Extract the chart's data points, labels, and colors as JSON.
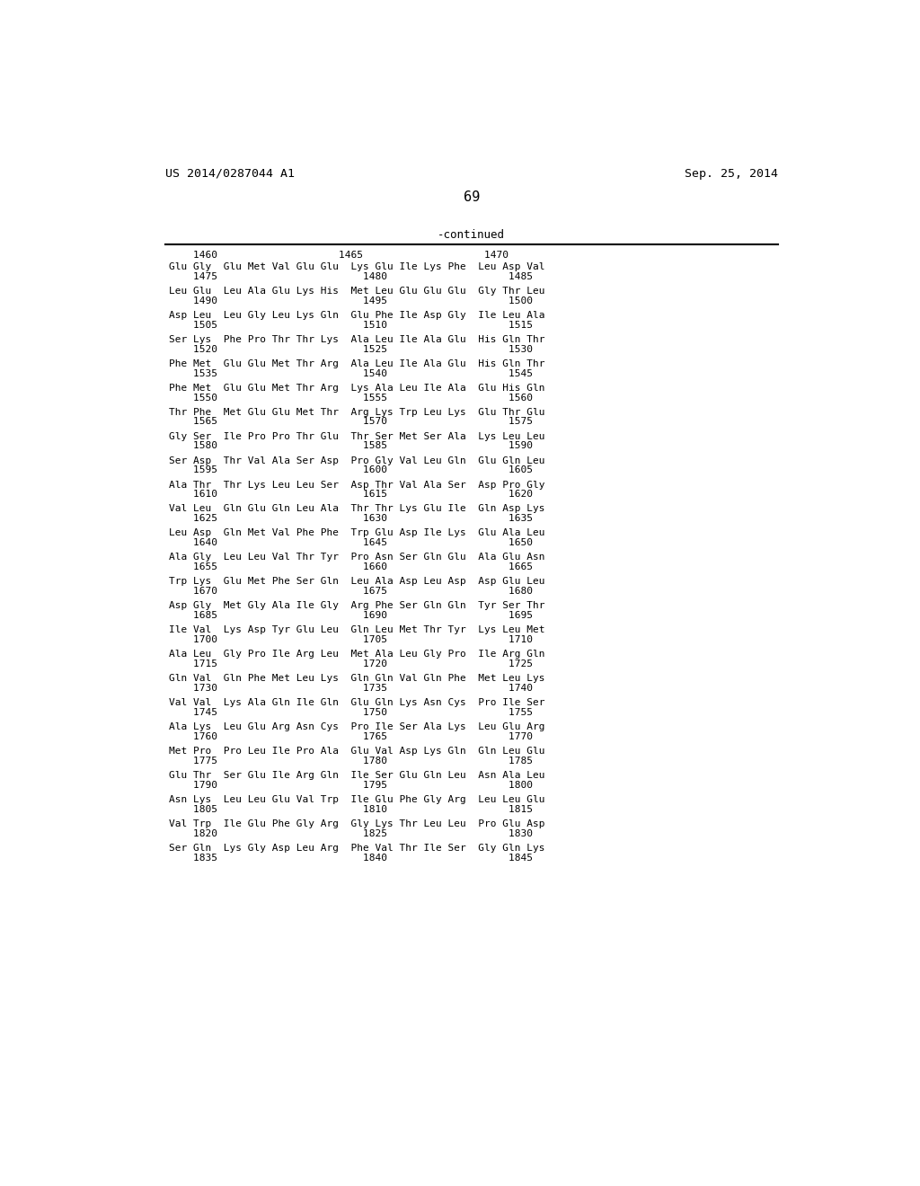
{
  "header_left": "US 2014/0287044 A1",
  "header_right": "Sep. 25, 2014",
  "page_number": "69",
  "continued_label": "-continued",
  "background_color": "#ffffff",
  "text_color": "#000000",
  "blocks": [
    {
      "res": "Glu Gly  Glu Met Val Glu Glu  Lys Glu Ile Lys Phe  Leu Asp Val",
      "num": "    1475                        1480                    1485"
    },
    {
      "res": "Leu Glu  Leu Ala Glu Lys His  Met Leu Glu Glu Glu  Gly Thr Leu",
      "num": "    1490                        1495                    1500"
    },
    {
      "res": "Asp Leu  Leu Gly Leu Lys Gln  Glu Phe Ile Asp Gly  Ile Leu Ala",
      "num": "    1505                        1510                    1515"
    },
    {
      "res": "Ser Lys  Phe Pro Thr Thr Lys  Ala Leu Ile Ala Glu  His Gln Thr",
      "num": "    1520                        1525                    1530"
    },
    {
      "res": "Phe Met  Glu Glu Met Thr Arg  Ala Leu Ile Ala Glu  His Gln Thr",
      "num": "    1535                        1540                    1545"
    },
    {
      "res": "Phe Met  Glu Glu Met Thr Arg  Lys Ala Leu Ile Ala  Glu His Gln",
      "num": "    1550                        1555                    1560"
    },
    {
      "res": "Thr Phe  Met Glu Glu Met Thr  Arg Lys Trp Leu Lys  Glu Thr Glu",
      "num": "    1565                        1570                    1575"
    },
    {
      "res": "Gly Ser  Ile Pro Pro Thr Glu  Thr Ser Met Ser Ala  Lys Leu Leu",
      "num": "    1580                        1585                    1590"
    },
    {
      "res": "Ser Asp  Thr Val Ala Ser Asp  Pro Gly Val Leu Gln  Glu Gln Leu",
      "num": "    1595                        1600                    1605"
    },
    {
      "res": "Ala Thr  Thr Lys Leu Leu Ser  Asp Thr Val Ala Ser  Asp Pro Gly",
      "num": "    1610                        1615                    1620"
    },
    {
      "res": "Val Leu  Gln Glu Gln Leu Ala  Thr Thr Lys Glu Ile  Gln Asp Lys",
      "num": "    1625                        1630                    1635"
    },
    {
      "res": "Leu Asp  Gln Met Val Phe Phe  Trp Glu Asp Ile Lys  Glu Ala Leu",
      "num": "    1640                        1645                    1650"
    },
    {
      "res": "Ala Gly  Leu Leu Val Thr Tyr  Pro Asn Ser Gln Glu  Ala Glu Asn",
      "num": "    1655                        1660                    1665"
    },
    {
      "res": "Trp Lys  Glu Met Phe Ser Gln  Leu Ala Asp Leu Asp  Asp Glu Leu",
      "num": "    1670                        1675                    1680"
    },
    {
      "res": "Asp Gly  Met Gly Ala Ile Gly  Arg Phe Ser Gln Gln  Tyr Ser Thr",
      "num": "    1685                        1690                    1695"
    },
    {
      "res": "Ile Val  Lys Asp Tyr Glu Leu  Gln Leu Met Thr Tyr  Lys Leu Met",
      "num": "    1700                        1705                    1710"
    },
    {
      "res": "Ala Leu  Gly Pro Ile Arg Leu  Met Ala Leu Gly Pro  Ile Arg Gln",
      "num": "    1715                        1720                    1725"
    },
    {
      "res": "Gln Val  Gln Phe Met Leu Lys  Gln Gln Val Gln Phe  Met Leu Lys",
      "num": "    1730                        1735                    1740"
    },
    {
      "res": "Val Val  Lys Ala Gln Ile Gln  Glu Gln Lys Asn Cys  Pro Ile Ser",
      "num": "    1745                        1750                    1755"
    },
    {
      "res": "Ala Lys  Leu Glu Arg Asn Cys  Pro Ile Ser Ala Lys  Leu Glu Arg",
      "num": "    1760                        1765                    1770"
    },
    {
      "res": "Met Pro  Pro Leu Ile Pro Ala  Glu Val Asp Lys Gln  Gln Leu Glu",
      "num": "    1775                        1780                    1785"
    },
    {
      "res": "Glu Thr  Ser Glu Ile Arg Gln  Ile Ser Glu Gln Leu  Asn Ala Leu",
      "num": "    1790                        1795                    1800"
    },
    {
      "res": "Asn Lys  Leu Leu Glu Val Trp  Ile Glu Phe Gly Arg  Leu Leu Glu",
      "num": "    1805                        1810                    1815"
    },
    {
      "res": "Val Trp  Ile Glu Phe Gly Arg  Gly Lys Thr Leu Leu  Pro Glu Asp",
      "num": "    1820                        1825                    1830"
    },
    {
      "res": "Ser Gln  Lys Gly Asp Leu Arg  Phe Val Thr Ile Ser  Gly Gln Lys",
      "num": "    1835                        1840                    1845"
    }
  ],
  "first_num_line": "    1460                    1465                    1470"
}
